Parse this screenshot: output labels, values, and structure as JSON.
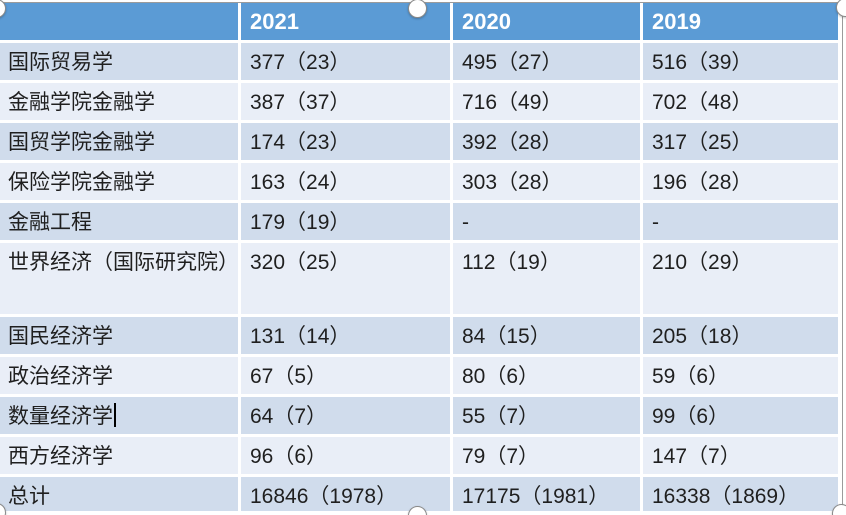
{
  "colors": {
    "header_bg": "#5B9BD5",
    "header_text": "#FFFFFF",
    "band_dark": "#D0DCEC",
    "band_light": "#E9EEF7",
    "cell_text": "#1F1F1F",
    "divider": "#FFFFFF",
    "outline": "#9B9B9B"
  },
  "table": {
    "header": {
      "col0": "",
      "col1": "2021",
      "col2": "2020",
      "col3": "2019"
    },
    "rows": [
      {
        "cells": [
          "国际贸易学",
          "377（23）",
          "495（27）",
          "516（39）"
        ]
      },
      {
        "cells": [
          "金融学院金融学",
          "387（37）",
          "716（49）",
          "702（48）"
        ]
      },
      {
        "cells": [
          "国贸学院金融学",
          "174（23）",
          "392（28）",
          "317（25）"
        ]
      },
      {
        "cells": [
          "保险学院金融学",
          "163（24）",
          "303（28）",
          "196（28）"
        ]
      },
      {
        "cells": [
          "金融工程",
          "179（19）",
          "-",
          "-"
        ]
      },
      {
        "cells": [
          "世界经济（国际研究院）",
          "320（25）",
          "112（19）",
          "210（29）"
        ]
      },
      {
        "cells": [
          "国民经济学",
          "131（14）",
          "84（15）",
          "205（18）"
        ]
      },
      {
        "cells": [
          "政治经济学",
          "67（5）",
          "80（6）",
          "59（6）"
        ]
      },
      {
        "cells": [
          "数量经济学",
          "64（7）",
          "55（7）",
          "99（6）"
        ]
      },
      {
        "cells": [
          "西方经济学",
          "96（6）",
          "79（7）",
          "147（7）"
        ]
      },
      {
        "cells": [
          "总计",
          "16846（1978）",
          "17175（1981）",
          "16338（1869）"
        ]
      }
    ]
  }
}
